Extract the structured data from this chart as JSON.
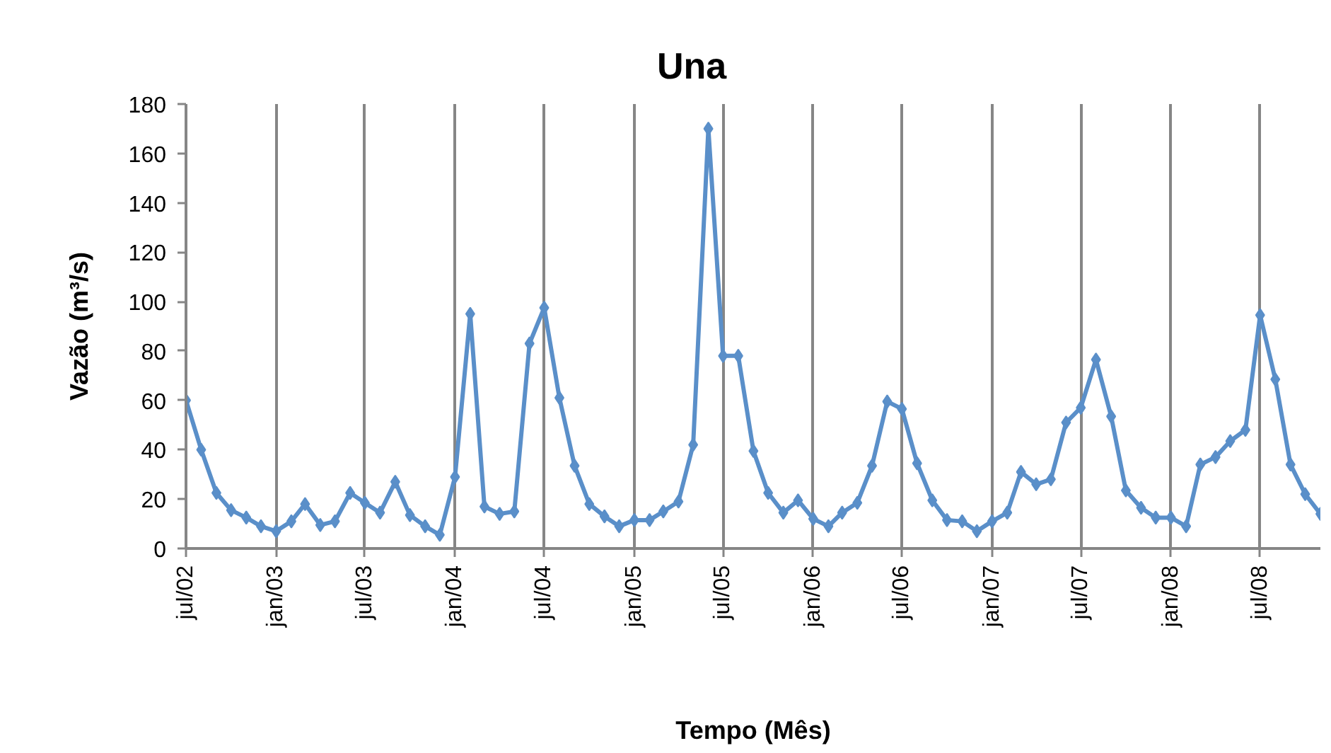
{
  "chart_data": {
    "type": "line",
    "title": "Una",
    "xlabel": "Tempo (Mês)",
    "ylabel": "Vazão (m³/s)",
    "x": [
      "2002-07",
      "2002-08",
      "2002-09",
      "2002-10",
      "2002-11",
      "2002-12",
      "2003-01",
      "2003-02",
      "2003-03",
      "2003-04",
      "2003-05",
      "2003-06",
      "2003-07",
      "2003-08",
      "2003-09",
      "2003-10",
      "2003-11",
      "2003-12",
      "2004-01",
      "2004-02",
      "2004-03",
      "2004-04",
      "2004-05",
      "2004-06",
      "2004-07",
      "2004-08",
      "2004-09",
      "2004-10",
      "2004-11",
      "2004-12",
      "2005-01",
      "2005-02",
      "2005-03",
      "2005-04",
      "2005-05",
      "2005-06",
      "2005-07",
      "2005-08",
      "2005-09",
      "2005-10",
      "2005-11",
      "2005-12",
      "2006-01",
      "2006-02",
      "2006-03",
      "2006-04",
      "2006-05",
      "2006-06",
      "2006-07",
      "2006-08",
      "2006-09",
      "2006-10",
      "2006-11",
      "2006-12",
      "2007-01",
      "2007-02",
      "2007-03",
      "2007-04",
      "2007-05",
      "2007-06",
      "2007-07",
      "2007-08",
      "2007-09",
      "2007-10",
      "2007-11",
      "2007-12",
      "2008-01",
      "2008-02",
      "2008-03",
      "2008-04",
      "2008-05",
      "2008-06",
      "2008-07",
      "2008-08",
      "2008-09",
      "2008-10",
      "2008-11"
    ],
    "values": [
      60,
      40,
      22.5,
      15.5,
      12.5,
      9,
      7,
      11,
      18,
      9.5,
      11,
      22.5,
      18.5,
      14.5,
      27,
      13.5,
      9,
      5.5,
      29,
      95,
      17,
      14,
      15,
      83,
      97.5,
      61,
      33.5,
      18,
      13,
      9,
      11.5,
      11.5,
      15,
      19,
      42,
      170,
      78,
      78,
      39.5,
      22.5,
      14.5,
      19.5,
      12,
      9,
      14.5,
      18.5,
      33.5,
      59.5,
      56.5,
      34.5,
      19.5,
      11.5,
      11,
      7,
      11,
      14.5,
      31,
      26,
      28,
      51,
      57,
      76.5,
      53.5,
      23.5,
      16.5,
      12.5,
      12.5,
      9,
      34,
      37,
      43.5,
      48,
      94.5,
      68.5,
      34,
      22,
      14
    ],
    "color": "#5a8fc9",
    "marker": "diamond",
    "line_style": "solid",
    "grid": "x",
    "xlim": [
      "2002-07",
      "2008-11"
    ],
    "xticks": [
      {
        "value": "2002-07",
        "label": "jul/02"
      },
      {
        "value": "2003-01",
        "label": "jan/03"
      },
      {
        "value": "2003-07",
        "label": "jul/03"
      },
      {
        "value": "2004-01",
        "label": "jan/04"
      },
      {
        "value": "2004-07",
        "label": "jul/04"
      },
      {
        "value": "2005-01",
        "label": "jan/05"
      },
      {
        "value": "2005-07",
        "label": "jul/05"
      },
      {
        "value": "2006-01",
        "label": "jan/06"
      },
      {
        "value": "2006-07",
        "label": "jul/06"
      },
      {
        "value": "2007-01",
        "label": "jan/07"
      },
      {
        "value": "2007-07",
        "label": "jul/07"
      },
      {
        "value": "2008-01",
        "label": "jan/08"
      },
      {
        "value": "2008-07",
        "label": "jul/08"
      }
    ],
    "ylim": [
      0,
      180
    ],
    "yticks": [
      0,
      20,
      40,
      60,
      80,
      100,
      120,
      140,
      160,
      180
    ]
  }
}
